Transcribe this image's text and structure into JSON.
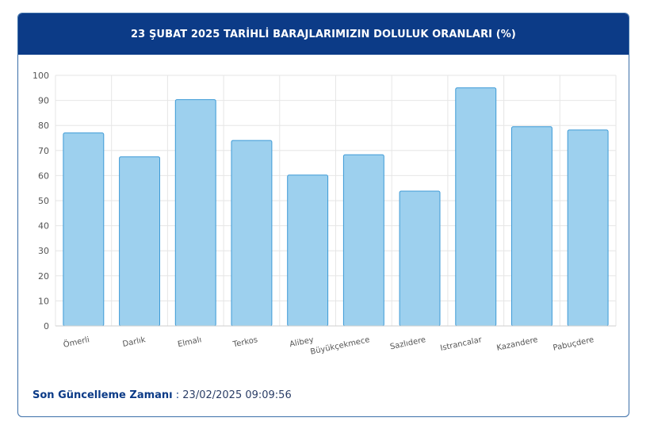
{
  "header": {
    "title": "23 ŞUBAT 2025 TARİHLİ BARAJLARIMIZIN DOLULUK ORANLARI (%)"
  },
  "footer": {
    "label": "Son Güncelleme Zamanı",
    "separator": " : ",
    "value": "23/02/2025 09:09:56"
  },
  "colors": {
    "header_bg": "#0c3b87",
    "bar_fill": "#9dd0ee",
    "bar_stroke": "#3d9ad6",
    "grid": "#e6e6e6"
  },
  "chart_data": {
    "type": "bar",
    "title": "23 ŞUBAT 2025 TARİHLİ BARAJLARIMIZIN DOLULUK ORANLARI (%)",
    "xlabel": "",
    "ylabel": "",
    "ylim": [
      0,
      100
    ],
    "yticks": [
      0,
      10,
      20,
      30,
      40,
      50,
      60,
      70,
      80,
      90,
      100
    ],
    "grid": true,
    "legend": "none",
    "categories": [
      "Ömerli",
      "Darlık",
      "Elmalı",
      "Terkos",
      "Alibey",
      "Büyükçekmece",
      "Sazlıdere",
      "Istrancalar",
      "Kazandere",
      "Pabuçdere"
    ],
    "values": [
      77,
      67.5,
      90.3,
      74,
      60.2,
      68.3,
      53.8,
      95,
      79.5,
      78.2
    ]
  }
}
